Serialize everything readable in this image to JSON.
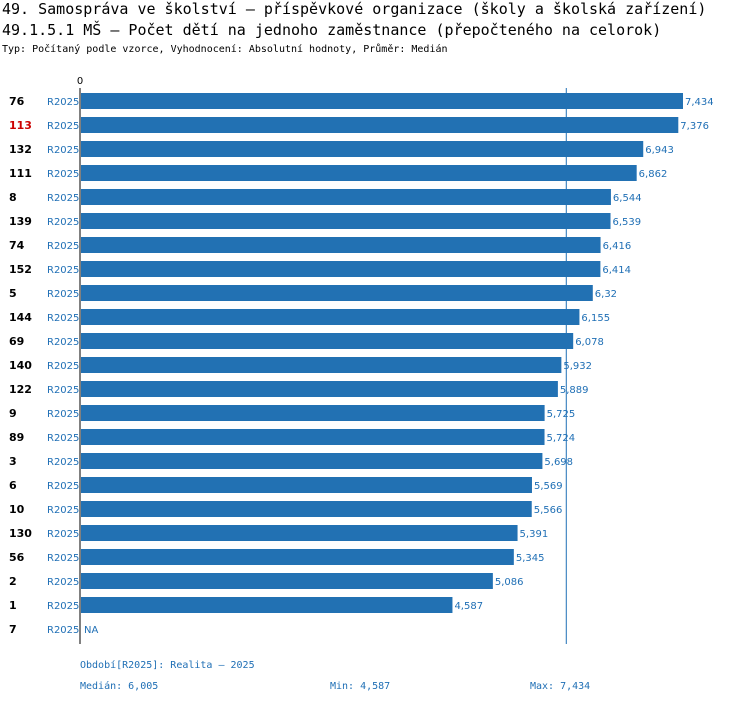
{
  "colors": {
    "bar": "#2271b3",
    "label": "#1f6fb5",
    "highlight": "#cc0000",
    "axis": "#000000",
    "median_line": "#1f6fb5"
  },
  "chart_data": {
    "type": "bar",
    "orientation": "horizontal",
    "title": "49. Samospráva ve školství – příspěvkové organizace (školy a školská zařízení)",
    "subtitle": "49.1.5.1 MŠ – Počet dětí na jednoho zaměstnance (přepočteného na celorok)",
    "description": "Typ: Počítaný podle vzorce, Vyhodnocení: Absolutní hodnoty, Průměr: Medián",
    "zero_label": "0",
    "x_max": 7.434,
    "median": 6.005,
    "highlight_id": "113",
    "rows": [
      {
        "id": "76",
        "series": "R2025",
        "value": 7.434,
        "label": "7,434"
      },
      {
        "id": "113",
        "series": "R2025",
        "value": 7.376,
        "label": "7,376"
      },
      {
        "id": "132",
        "series": "R2025",
        "value": 6.943,
        "label": "6,943"
      },
      {
        "id": "111",
        "series": "R2025",
        "value": 6.862,
        "label": "6,862"
      },
      {
        "id": "8",
        "series": "R2025",
        "value": 6.544,
        "label": "6,544"
      },
      {
        "id": "139",
        "series": "R2025",
        "value": 6.539,
        "label": "6,539"
      },
      {
        "id": "74",
        "series": "R2025",
        "value": 6.416,
        "label": "6,416"
      },
      {
        "id": "152",
        "series": "R2025",
        "value": 6.414,
        "label": "6,414"
      },
      {
        "id": "5",
        "series": "R2025",
        "value": 6.32,
        "label": "6,32"
      },
      {
        "id": "144",
        "series": "R2025",
        "value": 6.155,
        "label": "6,155"
      },
      {
        "id": "69",
        "series": "R2025",
        "value": 6.078,
        "label": "6,078"
      },
      {
        "id": "140",
        "series": "R2025",
        "value": 5.932,
        "label": "5,932"
      },
      {
        "id": "122",
        "series": "R2025",
        "value": 5.889,
        "label": "5,889"
      },
      {
        "id": "9",
        "series": "R2025",
        "value": 5.725,
        "label": "5,725"
      },
      {
        "id": "89",
        "series": "R2025",
        "value": 5.724,
        "label": "5,724"
      },
      {
        "id": "3",
        "series": "R2025",
        "value": 5.698,
        "label": "5,698"
      },
      {
        "id": "6",
        "series": "R2025",
        "value": 5.569,
        "label": "5,569"
      },
      {
        "id": "10",
        "series": "R2025",
        "value": 5.566,
        "label": "5,566"
      },
      {
        "id": "130",
        "series": "R2025",
        "value": 5.391,
        "label": "5,391"
      },
      {
        "id": "56",
        "series": "R2025",
        "value": 5.345,
        "label": "5,345"
      },
      {
        "id": "2",
        "series": "R2025",
        "value": 5.086,
        "label": "5,086"
      },
      {
        "id": "1",
        "series": "R2025",
        "value": 4.587,
        "label": "4,587"
      },
      {
        "id": "7",
        "series": "R2025",
        "value": null,
        "label": "NA"
      }
    ]
  },
  "footer": {
    "period": "Období[R2025]: Realita – 2025",
    "median": "Medián: 6,005",
    "min": "Min: 4,587",
    "max": "Max: 7,434"
  }
}
